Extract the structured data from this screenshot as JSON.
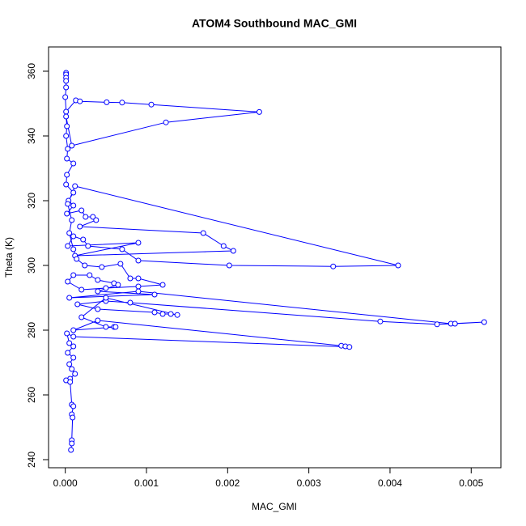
{
  "chart_data": {
    "type": "line",
    "markers": true,
    "title": "ATOM4 Southbound MAC_GMI",
    "xlabel": "MAC_GMI",
    "ylabel": "Theta (K)",
    "xlim": [
      -0.000206,
      0.005366
    ],
    "ylim": [
      237.5,
      367.5
    ],
    "xticks": [
      {
        "value": 0,
        "label": "0.000"
      },
      {
        "value": 0.001,
        "label": "0.001"
      },
      {
        "value": 0.002,
        "label": "0.002"
      },
      {
        "value": 0.003,
        "label": "0.003"
      },
      {
        "value": 0.004,
        "label": "0.004"
      },
      {
        "value": 0.005,
        "label": "0.005"
      }
    ],
    "yticks": [
      240,
      260,
      280,
      300,
      320,
      340,
      360
    ],
    "color": "#0000ff",
    "x": [
      1e-05,
      1e-05,
      1e-05,
      1e-05,
      1e-05,
      0.0,
      1e-05,
      0.00013,
      0.00018,
      0.00051,
      0.0007,
      0.00106,
      0.00239,
      0.00124,
      8e-05,
      1e-05,
      2e-05,
      1e-05,
      3e-05,
      2e-05,
      0.0001,
      2e-05,
      1e-05,
      0.0001,
      4e-05,
      0.0001,
      2e-05,
      0.0002,
      0.00025,
      0.00034,
      0.00038,
      0.00018,
      0.0017,
      0.00195,
      0.00207,
      0.00012,
      0.0009,
      3e-05,
      0.0001,
      0.00022,
      0.00028,
      0.0007,
      0.0009,
      0.00202,
      0.0033,
      0.0041,
      0.00012,
      3e-05,
      8e-05,
      5e-05,
      0.0001,
      0.00014,
      0.00024,
      0.00045,
      0.00068,
      0.0008,
      0.0009,
      0.0012,
      0.0009,
      0.0005,
      0.0002,
      3e-05,
      0.0001,
      0.0003,
      0.0004,
      0.0006,
      0.00065,
      0.0004,
      0.0011,
      5e-05,
      0.0009,
      0.00475,
      0.00516,
      0.0048,
      0.00458,
      0.00388,
      0.0008,
      0.0005,
      0.00015,
      0.0004,
      0.0011,
      0.0012,
      0.0013,
      0.00138,
      0.0005,
      0.0002,
      0.0005,
      0.0006,
      0.00062,
      0.0001,
      0.0004,
      0.0034,
      0.00345,
      0.0035,
      0.0001,
      2e-05,
      5e-05,
      0.0001,
      3e-05,
      0.0001,
      5e-05,
      8e-05,
      0.00012,
      6e-05,
      1e-05,
      6e-05,
      8e-05,
      0.0001,
      8e-05,
      9e-05,
      8e-05,
      8e-05,
      7e-05
    ],
    "values": [
      359.5,
      359,
      358,
      357,
      355,
      352,
      347.5,
      351,
      350.7,
      350.4,
      350.3,
      349.7,
      347.4,
      344.2,
      337,
      346,
      343,
      340,
      336,
      333,
      331.5,
      328,
      325,
      322.5,
      320,
      318.5,
      316,
      317,
      315,
      315,
      314,
      312,
      310,
      306,
      304.5,
      303,
      307,
      306,
      309,
      308,
      306,
      305,
      301.5,
      300,
      299.7,
      300,
      324.5,
      319,
      314,
      310,
      305,
      302,
      300,
      299.5,
      300.5,
      296,
      296,
      294,
      293.5,
      293,
      292.5,
      295,
      297,
      297,
      295.5,
      294.5,
      294,
      292,
      291,
      290,
      292,
      282,
      282.5,
      282,
      281.8,
      282.7,
      288.5,
      289,
      288,
      286.5,
      285.5,
      285,
      285,
      284.7,
      290,
      284,
      281,
      281,
      281,
      280,
      283,
      275.2,
      275,
      274.8,
      278,
      279,
      276,
      275,
      273,
      271.5,
      269.5,
      268,
      266.5,
      265,
      264.5,
      264,
      257,
      256.5,
      254,
      253,
      246,
      245,
      243
    ]
  }
}
